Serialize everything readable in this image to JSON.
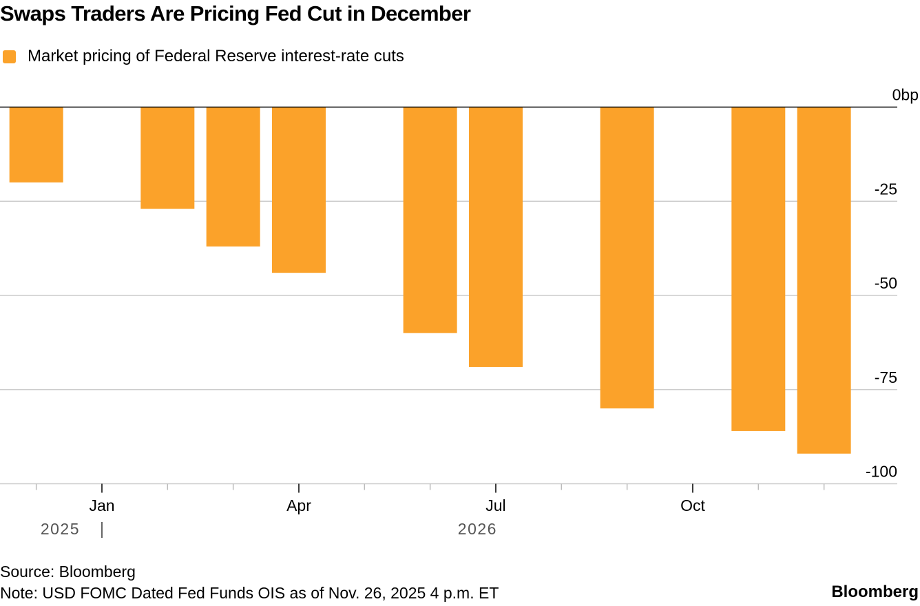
{
  "chart_data": {
    "type": "bar",
    "title": "Swaps Traders Are Pricing Fed Cut in December",
    "legend": [
      {
        "label": "Market pricing of Federal Reserve interest-rate cuts",
        "color": "#FBA22A"
      }
    ],
    "legend_position": "top-left",
    "xlabel": "",
    "ylabel": "",
    "y_unit_suffix": "bp",
    "ylim": [
      -100,
      0
    ],
    "yticks": [
      0,
      -25,
      -50,
      -75,
      -100
    ],
    "ytick_labels": [
      "0bp",
      "-25",
      "-50",
      "-75",
      "-100"
    ],
    "grid": true,
    "x_axis": {
      "start_month_offset": -1.5,
      "end_month_offset": 12.5,
      "minor_ticks_month_offsets": [
        -1,
        1,
        2,
        4,
        5,
        7,
        8,
        10,
        11
      ],
      "major_ticks": [
        {
          "offset": 0,
          "label": "Jan"
        },
        {
          "offset": 3,
          "label": "Apr"
        },
        {
          "offset": 6,
          "label": "Jul"
        },
        {
          "offset": 9,
          "label": "Oct"
        }
      ],
      "year_labels": [
        {
          "label": "2025",
          "anchor_offset": 0,
          "side": "left",
          "divider": true
        },
        {
          "label": "2026",
          "anchor_offset": 6,
          "side": "left",
          "divider": false
        }
      ]
    },
    "categories": [
      "Dec 2025",
      "Jan 2026",
      "Mar 2026",
      "Apr 2026",
      "Jun 2026",
      "Jul 2026",
      "Sep 2026",
      "Nov 2026",
      "Dec 2026"
    ],
    "x_month_offsets": [
      -1,
      1,
      2,
      3,
      5,
      6,
      8,
      10,
      11
    ],
    "values": [
      -20,
      -27,
      -37,
      -44,
      -60,
      -69,
      -80,
      -86,
      -92
    ]
  },
  "footer": {
    "source": "Source: Bloomberg",
    "note": "Note: USD FOMC Dated Fed Funds OIS as of Nov. 26, 2025 4 p.m. ET",
    "brand": "Bloomberg"
  },
  "colors": {
    "bar": "#FBA22A",
    "zero_line": "#000000",
    "grid": "#cccccc",
    "year_text": "#555555"
  }
}
